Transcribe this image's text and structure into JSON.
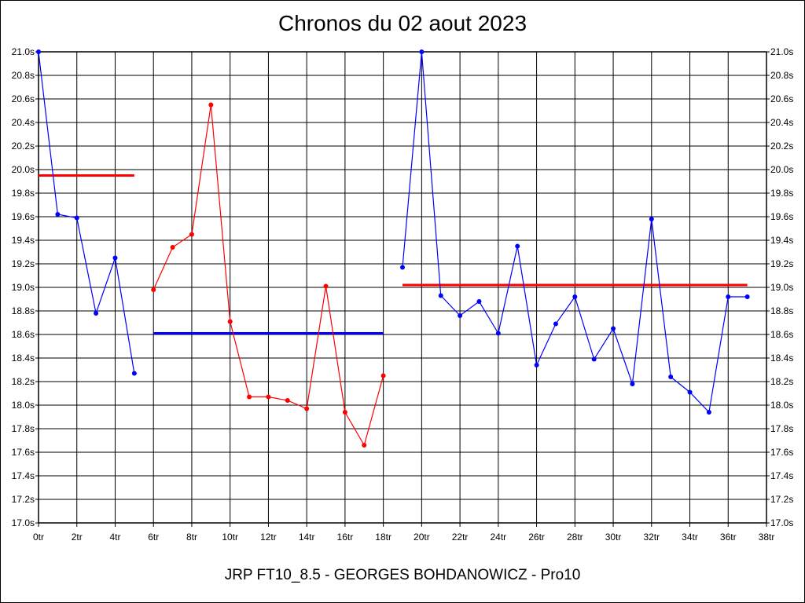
{
  "chart_data": {
    "type": "line",
    "title": "Chronos du 02 aout 2023",
    "footer": "JRP FT10_8.5 - GEORGES BOHDANOWICZ - Pro10",
    "x_ticks": [
      "0tr",
      "2tr",
      "4tr",
      "6tr",
      "8tr",
      "10tr",
      "12tr",
      "14tr",
      "16tr",
      "18tr",
      "20tr",
      "22tr",
      "24tr",
      "26tr",
      "28tr",
      "30tr",
      "32tr",
      "34tr",
      "36tr",
      "38tr"
    ],
    "y_ticks": [
      "17.0s",
      "17.2s",
      "17.4s",
      "17.6s",
      "17.8s",
      "18.0s",
      "18.2s",
      "18.4s",
      "18.6s",
      "18.8s",
      "19.0s",
      "19.2s",
      "19.4s",
      "19.6s",
      "19.8s",
      "20.0s",
      "20.2s",
      "20.4s",
      "20.6s",
      "20.8s",
      "21.0s"
    ],
    "xlim": [
      0,
      38
    ],
    "ylim": [
      17.0,
      21.0
    ],
    "grid": true,
    "series": [
      {
        "color": "#0000ff",
        "x": [
          0,
          1,
          2,
          3,
          4,
          5
        ],
        "y": [
          21.0,
          19.62,
          19.59,
          18.78,
          19.25,
          18.27
        ]
      },
      {
        "color": "#ff0000",
        "x": [
          6,
          7,
          8,
          9,
          10,
          11,
          12,
          13,
          14,
          15,
          16,
          17,
          18
        ],
        "y": [
          18.98,
          19.34,
          19.45,
          20.55,
          18.71,
          18.07,
          18.07,
          18.04,
          17.97,
          19.01,
          17.94,
          17.66,
          18.25
        ]
      },
      {
        "color": "#0000ff",
        "x": [
          19,
          20,
          21,
          22,
          23,
          24,
          25,
          26,
          27,
          28,
          29,
          30,
          31,
          32,
          33,
          34,
          35,
          36,
          37
        ],
        "y": [
          19.17,
          21.0,
          18.93,
          18.76,
          18.88,
          18.61,
          19.35,
          18.34,
          18.69,
          18.92,
          18.39,
          18.65,
          18.18,
          19.58,
          18.24,
          18.11,
          17.94,
          18.92,
          18.92
        ]
      }
    ],
    "averages": [
      {
        "color": "#ff0000",
        "x0": 0,
        "x1": 5,
        "y": 19.95
      },
      {
        "color": "#0000ff",
        "x0": 6,
        "x1": 18,
        "y": 18.61
      },
      {
        "color": "#ff0000",
        "x0": 19,
        "x1": 37,
        "y": 19.02
      }
    ]
  }
}
